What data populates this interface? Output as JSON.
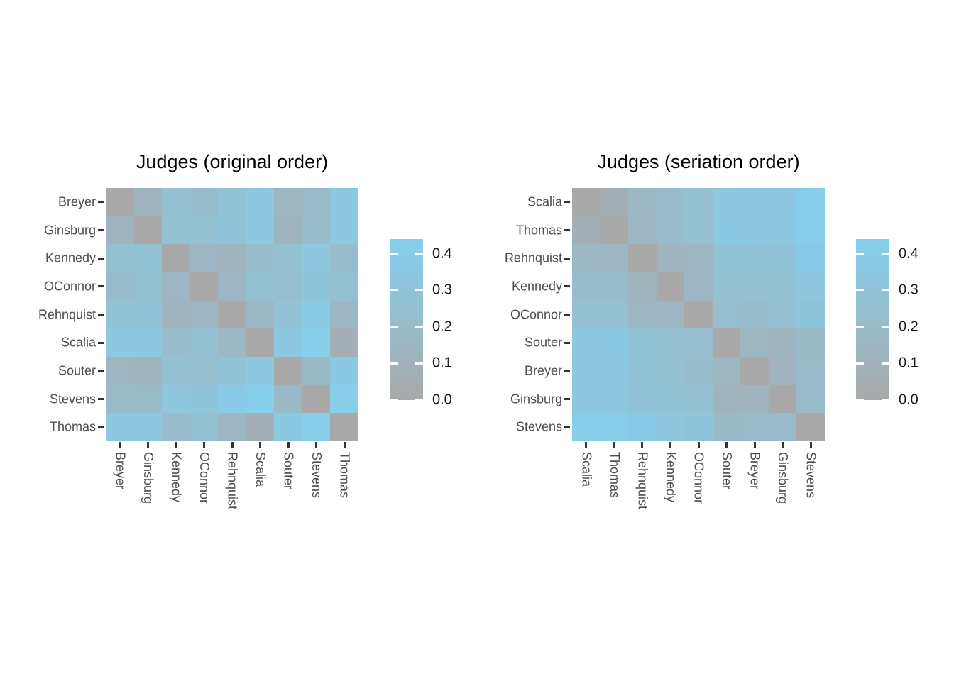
{
  "figure": {
    "background": "#FFFFFF"
  },
  "scale": {
    "low_color": "#A9A9A9",
    "high_color": "#87CEEB",
    "cell_domain": [
      0,
      0.41
    ],
    "bar_domain": [
      0,
      0.44
    ]
  },
  "chart_data": [
    {
      "type": "heatmap",
      "title": "Judges (original order)",
      "legend_position": "right",
      "grid": false,
      "categories": [
        "Breyer",
        "Ginsburg",
        "Kennedy",
        "OConnor",
        "Rehnquist",
        "Scalia",
        "Souter",
        "Stevens",
        "Thomas"
      ],
      "matrix": [
        [
          0.0,
          0.12,
          0.25,
          0.21,
          0.28,
          0.35,
          0.15,
          0.19,
          0.35
        ],
        [
          0.12,
          0.0,
          0.27,
          0.25,
          0.29,
          0.34,
          0.13,
          0.2,
          0.35
        ],
        [
          0.25,
          0.27,
          0.0,
          0.16,
          0.12,
          0.21,
          0.25,
          0.33,
          0.21
        ],
        [
          0.21,
          0.25,
          0.16,
          0.0,
          0.16,
          0.25,
          0.23,
          0.31,
          0.25
        ],
        [
          0.28,
          0.29,
          0.12,
          0.16,
          0.0,
          0.17,
          0.28,
          0.38,
          0.16
        ],
        [
          0.35,
          0.34,
          0.21,
          0.25,
          0.17,
          0.0,
          0.34,
          0.41,
          0.07
        ],
        [
          0.15,
          0.13,
          0.25,
          0.23,
          0.28,
          0.34,
          0.0,
          0.18,
          0.36
        ],
        [
          0.19,
          0.2,
          0.33,
          0.31,
          0.38,
          0.41,
          0.18,
          0.0,
          0.4
        ],
        [
          0.35,
          0.35,
          0.21,
          0.25,
          0.16,
          0.07,
          0.36,
          0.4,
          0.0
        ]
      ],
      "legend": {
        "ticks": [
          "0.0",
          "0.1",
          "0.2",
          "0.3",
          "0.4"
        ],
        "values": [
          0,
          0.1,
          0.2,
          0.3,
          0.4
        ]
      }
    },
    {
      "type": "heatmap",
      "title": "Judges (seriation order)",
      "legend_position": "right",
      "grid": false,
      "categories": [
        "Scalia",
        "Thomas",
        "Rehnquist",
        "Kennedy",
        "OConnor",
        "Souter",
        "Breyer",
        "Ginsburg",
        "Stevens"
      ],
      "matrix": [
        [
          0.0,
          0.07,
          0.17,
          0.21,
          0.25,
          0.34,
          0.35,
          0.34,
          0.41
        ],
        [
          0.07,
          0.0,
          0.16,
          0.21,
          0.25,
          0.36,
          0.35,
          0.35,
          0.4
        ],
        [
          0.17,
          0.16,
          0.0,
          0.12,
          0.16,
          0.28,
          0.28,
          0.29,
          0.38
        ],
        [
          0.21,
          0.21,
          0.12,
          0.0,
          0.16,
          0.25,
          0.25,
          0.27,
          0.33
        ],
        [
          0.25,
          0.25,
          0.16,
          0.16,
          0.0,
          0.23,
          0.21,
          0.25,
          0.31
        ],
        [
          0.34,
          0.36,
          0.28,
          0.25,
          0.23,
          0.0,
          0.15,
          0.13,
          0.18
        ],
        [
          0.35,
          0.35,
          0.28,
          0.25,
          0.21,
          0.15,
          0.0,
          0.12,
          0.19
        ],
        [
          0.34,
          0.35,
          0.29,
          0.27,
          0.25,
          0.13,
          0.12,
          0.0,
          0.2
        ],
        [
          0.41,
          0.4,
          0.38,
          0.33,
          0.31,
          0.18,
          0.19,
          0.2,
          0.0
        ]
      ],
      "legend": {
        "ticks": [
          "0.0",
          "0.1",
          "0.2",
          "0.3",
          "0.4"
        ],
        "values": [
          0,
          0.1,
          0.2,
          0.3,
          0.4
        ]
      }
    }
  ]
}
